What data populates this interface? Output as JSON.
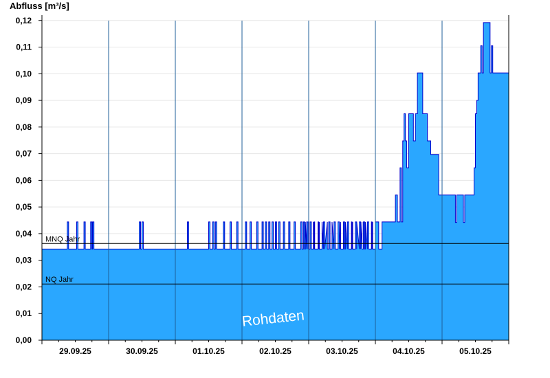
{
  "chart_data": {
    "type": "area",
    "ylabel": "Abfluss [m³/s]",
    "ylim": [
      0,
      0.122
    ],
    "y_ticks": [
      "0,00",
      "0,01",
      "0,02",
      "0,03",
      "0,04",
      "0,05",
      "0,06",
      "0,07",
      "0,08",
      "0,09",
      "0,10",
      "0,11",
      "0,12"
    ],
    "x_tick_labels": [
      "29.09.25",
      "30.09.25",
      "01.10.25",
      "02.10.25",
      "03.10.25",
      "04.10.25",
      "05.10.25"
    ],
    "xlim_days": [
      0,
      7
    ],
    "grid": true,
    "reference_lines": [
      {
        "label": "MNQ Jahr",
        "value": 0.0363
      },
      {
        "label": "NQ Jahr",
        "value": 0.0211
      }
    ],
    "watermark": "Rohdaten",
    "colors": {
      "fill": "#2aa7ff",
      "line": "#0000cc",
      "ref": "#000000",
      "grid": "#e6e6e6"
    },
    "series": [
      {
        "base_level": 0.0342,
        "spike_level": 0.0444,
        "spikes": [
          [
            0.38,
            0.4
          ],
          [
            0.52,
            0.54
          ],
          [
            0.63,
            0.65
          ],
          [
            0.73,
            0.75
          ],
          [
            0.76,
            0.78
          ],
          [
            1.46,
            1.48
          ],
          [
            1.5,
            1.52
          ],
          [
            2.18,
            2.2
          ],
          [
            2.5,
            2.52
          ],
          [
            2.56,
            2.58
          ],
          [
            2.6,
            2.62
          ],
          [
            2.72,
            2.74
          ],
          [
            2.82,
            2.84
          ],
          [
            2.92,
            2.94
          ],
          [
            3.05,
            3.07
          ],
          [
            3.12,
            3.14
          ],
          [
            3.22,
            3.24
          ],
          [
            3.3,
            3.32
          ],
          [
            3.35,
            3.37
          ],
          [
            3.4,
            3.42
          ],
          [
            3.45,
            3.47
          ],
          [
            3.5,
            3.52
          ],
          [
            3.55,
            3.57
          ],
          [
            3.62,
            3.64
          ],
          [
            3.7,
            3.72
          ],
          [
            3.78,
            3.8
          ],
          [
            3.88,
            3.9
          ],
          [
            3.92,
            3.94
          ],
          [
            3.97,
            3.99
          ],
          [
            4.02,
            4.04
          ],
          [
            4.07,
            4.09
          ],
          [
            4.14,
            4.16
          ],
          [
            4.22,
            4.24
          ],
          [
            4.3,
            4.32
          ],
          [
            4.38,
            4.4
          ],
          [
            4.44,
            4.46
          ],
          [
            4.52,
            4.54
          ],
          [
            4.58,
            4.6
          ],
          [
            4.64,
            4.66
          ],
          [
            4.7,
            4.72
          ],
          [
            4.76,
            4.78
          ],
          [
            4.82,
            4.84
          ],
          [
            4.88,
            4.9
          ],
          [
            4.94,
            4.96
          ]
        ],
        "values": [
          [
            0,
            0.0342
          ],
          [
            3.95,
            0.0342
          ],
          [
            3.95,
            0.0444
          ],
          [
            4.0,
            0.0444
          ],
          [
            4.0,
            0.0342
          ],
          [
            4.08,
            0.0342
          ],
          [
            4.08,
            0.0444
          ],
          [
            4.15,
            0.0444
          ],
          [
            4.15,
            0.0342
          ],
          [
            4.2,
            0.0342
          ],
          [
            4.2,
            0.0444
          ],
          [
            4.28,
            0.0444
          ],
          [
            4.28,
            0.0342
          ],
          [
            4.35,
            0.0342
          ],
          [
            4.35,
            0.0444
          ],
          [
            4.48,
            0.0444
          ],
          [
            4.48,
            0.0342
          ],
          [
            4.55,
            0.0342
          ],
          [
            4.55,
            0.0444
          ],
          [
            4.65,
            0.0444
          ],
          [
            4.65,
            0.0342
          ],
          [
            4.72,
            0.0342
          ],
          [
            4.72,
            0.0444
          ],
          [
            4.8,
            0.0444
          ],
          [
            4.8,
            0.0342
          ],
          [
            4.85,
            0.0342
          ],
          [
            4.85,
            0.0444
          ],
          [
            4.95,
            0.0444
          ],
          [
            4.95,
            0.0342
          ],
          [
            5.0,
            0.0342
          ],
          [
            5.0,
            0.0444
          ],
          [
            5.05,
            0.0444
          ],
          [
            5.05,
            0.0342
          ],
          [
            5.1,
            0.0342
          ],
          [
            5.1,
            0.0444
          ],
          [
            5.3,
            0.0444
          ],
          [
            5.3,
            0.0545
          ],
          [
            5.33,
            0.0545
          ],
          [
            5.33,
            0.0444
          ],
          [
            5.37,
            0.0444
          ],
          [
            5.37,
            0.0647
          ],
          [
            5.39,
            0.0647
          ],
          [
            5.39,
            0.0444
          ],
          [
            5.41,
            0.0444
          ],
          [
            5.41,
            0.0748
          ],
          [
            5.43,
            0.0748
          ],
          [
            5.43,
            0.085
          ],
          [
            5.45,
            0.085
          ],
          [
            5.45,
            0.0748
          ],
          [
            5.47,
            0.0748
          ],
          [
            5.47,
            0.0647
          ],
          [
            5.5,
            0.0647
          ],
          [
            5.5,
            0.085
          ],
          [
            5.57,
            0.085
          ],
          [
            5.57,
            0.0748
          ],
          [
            5.6,
            0.0748
          ],
          [
            5.6,
            0.085
          ],
          [
            5.63,
            0.085
          ],
          [
            5.63,
            0.1003
          ],
          [
            5.71,
            0.1003
          ],
          [
            5.71,
            0.085
          ],
          [
            5.78,
            0.085
          ],
          [
            5.78,
            0.0748
          ],
          [
            5.81,
            0.0748
          ],
          [
            5.81,
            0.0748
          ],
          [
            5.83,
            0.0748
          ],
          [
            5.83,
            0.0697
          ],
          [
            5.95,
            0.0697
          ],
          [
            5.95,
            0.0545
          ],
          [
            6.2,
            0.0545
          ],
          [
            6.2,
            0.0442
          ],
          [
            6.22,
            0.0442
          ],
          [
            6.22,
            0.0545
          ],
          [
            6.32,
            0.0545
          ],
          [
            6.32,
            0.0442
          ],
          [
            6.34,
            0.0442
          ],
          [
            6.34,
            0.0545
          ],
          [
            6.48,
            0.0545
          ],
          [
            6.48,
            0.0647
          ],
          [
            6.5,
            0.0647
          ],
          [
            6.5,
            0.085
          ],
          [
            6.52,
            0.085
          ],
          [
            6.52,
            0.09
          ],
          [
            6.54,
            0.09
          ],
          [
            6.54,
            0.1003
          ],
          [
            6.58,
            0.1003
          ],
          [
            6.58,
            0.1105
          ],
          [
            6.6,
            0.1105
          ],
          [
            6.6,
            0.1003
          ],
          [
            6.62,
            0.1003
          ],
          [
            6.62,
            0.1192
          ],
          [
            6.72,
            0.1192
          ],
          [
            6.72,
            0.1003
          ],
          [
            6.74,
            0.1003
          ],
          [
            6.74,
            0.1105
          ],
          [
            6.76,
            0.1105
          ],
          [
            6.76,
            0.1003
          ],
          [
            7.0,
            0.1003
          ]
        ]
      }
    ]
  }
}
